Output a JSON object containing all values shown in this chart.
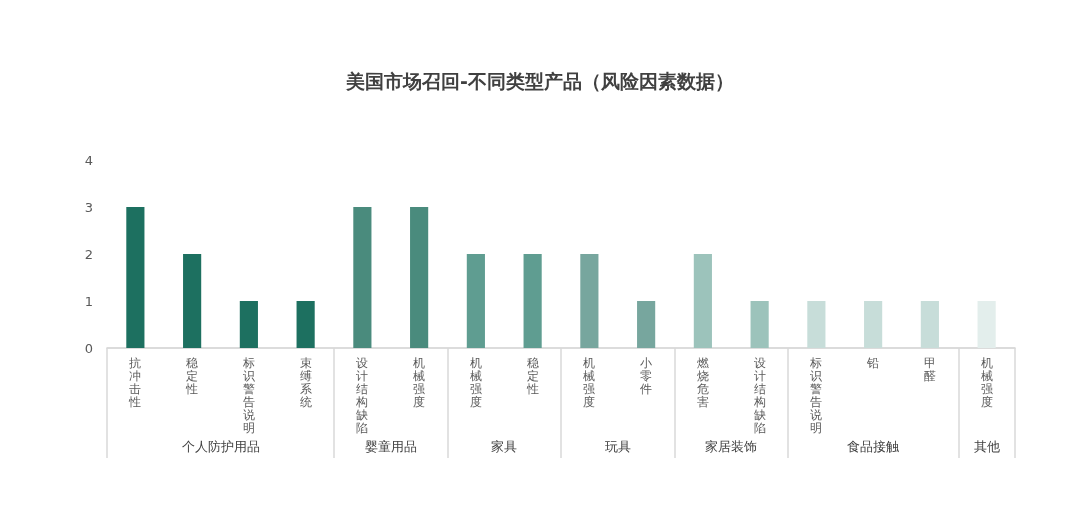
{
  "chart_data": {
    "type": "bar",
    "title": "美国市场召回-不同类型产品（风险因素数据）",
    "categories": [
      "抗冲击性",
      "稳定性",
      "标识警告说明",
      "束缚系统",
      "设计结构缺陷",
      "机械强度",
      "机械强度",
      "稳定性",
      "机械强度",
      "小零件",
      "燃烧危害",
      "设计结构缺陷",
      "标识警告说明",
      "铅",
      "甲醛",
      "机械强度"
    ],
    "values": [
      3,
      2,
      1,
      1,
      3,
      3,
      2,
      2,
      2,
      1,
      2,
      1,
      1,
      1,
      1,
      1
    ],
    "colors": [
      "#1d7060",
      "#1d7060",
      "#1d7060",
      "#1d7060",
      "#4a8b7d",
      "#4a8b7d",
      "#5f9d91",
      "#5f9d91",
      "#77a69e",
      "#77a69e",
      "#9cc3bb",
      "#9cc3bb",
      "#c7ddd9",
      "#c7ddd9",
      "#c7ddd9",
      "#e3eeec"
    ],
    "annotations": [
      "个人防护用品",
      "婴童用品",
      "家具",
      "玩具",
      "家居装饰",
      "食品接触",
      "其他"
    ],
    "ylim": [
      0,
      4
    ],
    "yticks": [
      0,
      1,
      2,
      3,
      4
    ]
  }
}
